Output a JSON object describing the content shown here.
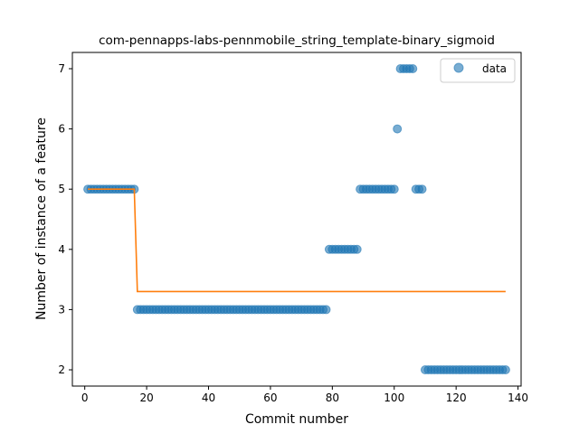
{
  "chart_data": {
    "type": "scatter",
    "title": "com-pennapps-labs-pennmobile_string_template-binary_sigmoid",
    "xlabel": "Commit number",
    "ylabel": "Number of instance of a feature",
    "xlim": [
      -4,
      141
    ],
    "ylim": [
      1.73,
      7.27
    ],
    "xticks": [
      0,
      20,
      40,
      60,
      80,
      100,
      120,
      140
    ],
    "yticks": [
      2,
      3,
      4,
      5,
      6,
      7
    ],
    "grid": false,
    "legend": {
      "position": "top-right",
      "entries": [
        "data"
      ]
    },
    "colors": {
      "scatter": "#1f77b4",
      "fit_line": "#ff7f0e"
    },
    "series": [
      {
        "name": "data",
        "kind": "scatter",
        "segments": [
          {
            "x_from": 1,
            "x_to": 16,
            "y": 5
          },
          {
            "x_from": 17,
            "x_to": 78,
            "y": 3
          },
          {
            "x_from": 79,
            "x_to": 88,
            "y": 4
          },
          {
            "x_from": 89,
            "x_to": 100,
            "y": 5
          },
          {
            "x_from": 101,
            "x_to": 101,
            "y": 6
          },
          {
            "x_from": 102,
            "x_to": 106,
            "y": 7
          },
          {
            "x_from": 107,
            "x_to": 109,
            "y": 5
          },
          {
            "x_from": 110,
            "x_to": 136,
            "y": 2
          }
        ]
      },
      {
        "kind": "line",
        "points": [
          [
            1,
            5.0
          ],
          [
            16,
            5.0
          ],
          [
            17,
            3.3
          ],
          [
            136,
            3.3
          ]
        ]
      }
    ]
  }
}
